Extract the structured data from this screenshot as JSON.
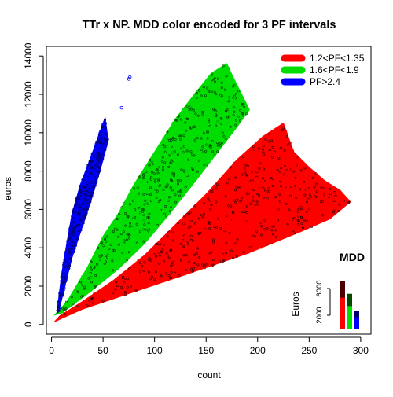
{
  "chart_data": {
    "type": "scatter",
    "title": "TTr x NP. MDD color encoded for 3 PF intervals",
    "xlabel": "count",
    "ylabel": "euros",
    "xlim": [
      -5,
      310
    ],
    "ylim": [
      -500,
      14500
    ],
    "x_ticks": [
      0,
      50,
      100,
      150,
      200,
      250,
      300
    ],
    "y_ticks": [
      0,
      2000,
      4000,
      6000,
      8000,
      10000,
      12000,
      14000
    ],
    "grid": false,
    "legend_position": "top-right",
    "series": [
      {
        "name": "1.2<PF<1.35",
        "color": "#ff0000",
        "dark_color": "#3a0000",
        "region_outline": [
          [
            3,
            150
          ],
          [
            30,
            800
          ],
          [
            80,
            1700
          ],
          [
            130,
            2600
          ],
          [
            190,
            3700
          ],
          [
            240,
            4800
          ],
          [
            270,
            5500
          ],
          [
            290,
            6400
          ],
          [
            280,
            7000
          ],
          [
            265,
            7500
          ],
          [
            250,
            8200
          ],
          [
            235,
            9000
          ],
          [
            225,
            10500
          ],
          [
            205,
            9800
          ],
          [
            180,
            8600
          ],
          [
            150,
            6800
          ],
          [
            120,
            5200
          ],
          [
            90,
            3600
          ],
          [
            60,
            2300
          ],
          [
            30,
            1200
          ],
          [
            8,
            450
          ]
        ]
      },
      {
        "name": "1.6<PF<1.9",
        "color": "#00dd00",
        "dark_color": "#003a00",
        "region_outline": [
          [
            3,
            500
          ],
          [
            15,
            1200
          ],
          [
            35,
            3000
          ],
          [
            50,
            4600
          ],
          [
            65,
            5800
          ],
          [
            80,
            7300
          ],
          [
            100,
            9000
          ],
          [
            120,
            10700
          ],
          [
            140,
            12100
          ],
          [
            155,
            13100
          ],
          [
            170,
            13600
          ],
          [
            178,
            12700
          ],
          [
            192,
            11200
          ],
          [
            180,
            10300
          ],
          [
            160,
            8900
          ],
          [
            140,
            7500
          ],
          [
            115,
            5800
          ],
          [
            90,
            4200
          ],
          [
            65,
            2900
          ],
          [
            35,
            1600
          ],
          [
            10,
            600
          ]
        ]
      },
      {
        "name": "PF>2.4",
        "color": "#0000ff",
        "dark_color": "#000066",
        "region_outline": [
          [
            5,
            500
          ],
          [
            7,
            1400
          ],
          [
            10,
            2700
          ],
          [
            15,
            4300
          ],
          [
            20,
            5800
          ],
          [
            28,
            7300
          ],
          [
            40,
            9000
          ],
          [
            52,
            10800
          ],
          [
            55,
            9600
          ],
          [
            47,
            8000
          ],
          [
            38,
            6400
          ],
          [
            28,
            4800
          ],
          [
            20,
            3500
          ],
          [
            13,
            2000
          ],
          [
            8,
            900
          ]
        ]
      }
    ],
    "outliers": [
      {
        "series": 2,
        "x": 68,
        "y": 11300
      },
      {
        "series": 2,
        "x": 76,
        "y": 12900
      },
      {
        "series": 2,
        "x": 75,
        "y": 12800
      }
    ],
    "inset": {
      "type": "bar",
      "title": "MDD",
      "ylabel": "Euros",
      "y_ticks": [
        2000,
        6000
      ],
      "ylim": [
        0,
        8000
      ],
      "bars": [
        {
          "series": 0,
          "value": 7100
        },
        {
          "series": 1,
          "value": 5200
        },
        {
          "series": 2,
          "value": 2600
        }
      ]
    }
  }
}
